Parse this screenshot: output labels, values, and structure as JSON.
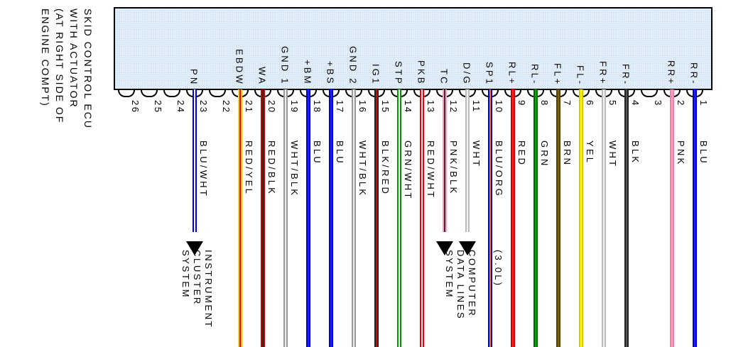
{
  "title_lines": [
    "SKID CONTROL ECU",
    "WITH ACTUATOR",
    "(AT RIGHT SIDE OF",
    "ENGINE COMPT)"
  ],
  "connector": {
    "fill": "#d9e9f7",
    "border": "#000000"
  },
  "pins": [
    {
      "n": "1",
      "label": "RR-",
      "color": "BLU",
      "edge": "#0000bb",
      "center": "#2222ff",
      "arrow": false,
      "note": "",
      "system": null
    },
    {
      "n": "2",
      "label": "RR+",
      "color": "PNK",
      "edge": "#ee7fa5",
      "center": "#ffa5c3",
      "arrow": false,
      "note": "",
      "system": null
    },
    {
      "n": "3",
      "label": "",
      "color": "",
      "edge": "",
      "center": "",
      "arrow": false,
      "note": "",
      "system": null
    },
    {
      "n": "4",
      "label": "FR-",
      "color": "BLK",
      "edge": "#222222",
      "center": "#555555",
      "arrow": false,
      "note": "",
      "system": null
    },
    {
      "n": "5",
      "label": "FR+",
      "color": "WHT",
      "edge": "#bbbbbb",
      "center": "#f2f2f2",
      "arrow": false,
      "note": "",
      "system": null
    },
    {
      "n": "6",
      "label": "FL-",
      "color": "YEL",
      "edge": "#d6c800",
      "center": "#ffff00",
      "arrow": false,
      "note": "",
      "system": null
    },
    {
      "n": "7",
      "label": "FL+",
      "color": "BRN",
      "edge": "#584400",
      "center": "#7d5f10",
      "arrow": false,
      "note": "",
      "system": null
    },
    {
      "n": "8",
      "label": "RL-",
      "color": "GRN",
      "edge": "#006600",
      "center": "#00aa00",
      "arrow": false,
      "note": "",
      "system": null
    },
    {
      "n": "9",
      "label": "RL+",
      "color": "RED",
      "edge": "#cc0000",
      "center": "#ff2222",
      "arrow": false,
      "note": "",
      "system": null
    },
    {
      "n": "10",
      "label": "SP1",
      "color": "BLU/ORG",
      "edge": "#0000cc",
      "center": "#ff7711",
      "arrow": false,
      "note": "(3.0L)",
      "system": null
    },
    {
      "n": "11",
      "label": "D/G",
      "color": "WHT",
      "edge": "#bbbbbb",
      "center": "#f2f2f2",
      "arrow": true,
      "note": "",
      "system": [
        "COMPUTER",
        "DATA LINES",
        "SYSTEM"
      ]
    },
    {
      "n": "12",
      "label": "TC",
      "color": "PNK/BLK",
      "edge": "#ff9fbe",
      "center": "#333333",
      "arrow": true,
      "note": "",
      "system": null
    },
    {
      "n": "13",
      "label": "PKB",
      "color": "RED/WHT",
      "edge": "#ee0000",
      "center": "#ffffff",
      "arrow": false,
      "note": "",
      "system": null
    },
    {
      "n": "14",
      "label": "STP",
      "color": "GRN/WHT",
      "edge": "#009900",
      "center": "#ffffff",
      "arrow": false,
      "note": "",
      "system": null
    },
    {
      "n": "15",
      "label": "IG1",
      "color": "BLK/RED",
      "edge": "#222222",
      "center": "#dd0000",
      "arrow": false,
      "note": "",
      "system": null
    },
    {
      "n": "16",
      "label": "GND 2",
      "color": "WHT/BLK",
      "edge": "#999999",
      "center": "#eeeeee",
      "arrow": false,
      "note": "",
      "system": null
    },
    {
      "n": "17",
      "label": "+BS",
      "color": "BLU",
      "edge": "#0000bb",
      "center": "#2222ff",
      "arrow": false,
      "note": "",
      "system": null
    },
    {
      "n": "18",
      "label": "+BM",
      "color": "BLU",
      "edge": "#0000bb",
      "center": "#2222ff",
      "arrow": false,
      "note": "",
      "system": null
    },
    {
      "n": "19",
      "label": "GND 1",
      "color": "WHT/BLK",
      "edge": "#999999",
      "center": "#eeeeee",
      "arrow": false,
      "note": "",
      "system": null
    },
    {
      "n": "20",
      "label": "WA",
      "color": "RED/BLK",
      "edge": "#cc0000",
      "center": "#222222",
      "arrow": false,
      "note": "",
      "system": null
    },
    {
      "n": "21",
      "label": "EBDW",
      "color": "RED/YEL",
      "edge": "#f0e000",
      "center": "#ee0000",
      "arrow": false,
      "note": "",
      "system": null
    },
    {
      "n": "22",
      "label": "",
      "color": "",
      "edge": "",
      "center": "",
      "arrow": false,
      "note": "",
      "system": null
    },
    {
      "n": "23",
      "label": "PN",
      "color": "BLU/WHT",
      "edge": "#0000cc",
      "center": "#ffffff",
      "arrow": true,
      "note": "",
      "system": [
        "INSTRUMENT",
        "CLUSTER",
        "SYSTEM"
      ]
    },
    {
      "n": "24",
      "label": "",
      "color": "",
      "edge": "",
      "center": "",
      "arrow": false,
      "note": "",
      "system": null
    },
    {
      "n": "25",
      "label": "",
      "color": "",
      "edge": "",
      "center": "",
      "arrow": false,
      "note": "",
      "system": null
    },
    {
      "n": "26",
      "label": "",
      "color": "",
      "edge": "",
      "center": "",
      "arrow": false,
      "note": "",
      "system": null
    }
  ]
}
